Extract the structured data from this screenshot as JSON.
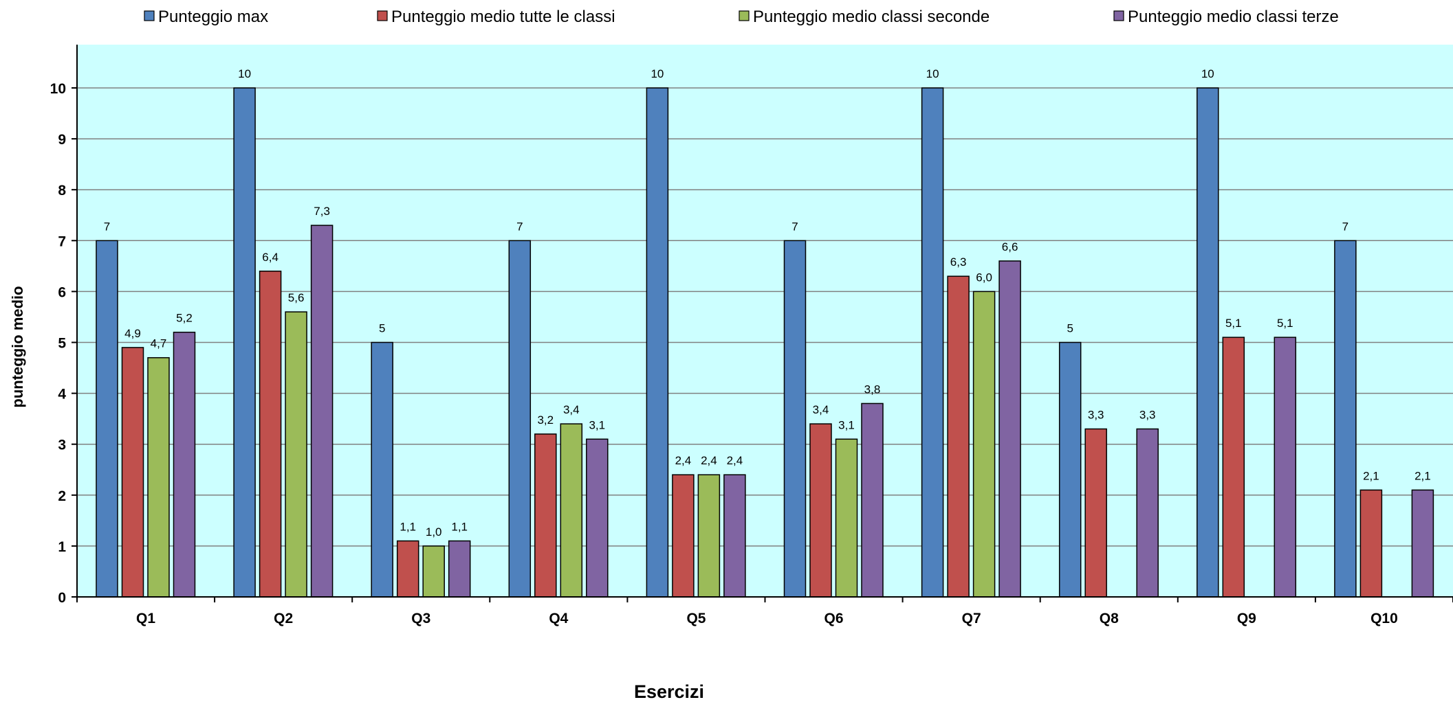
{
  "chart_data": {
    "type": "bar",
    "xlabel": "Esercizi",
    "ylabel": "punteggio medio",
    "ylim": [
      0,
      11
    ],
    "yticks": [
      0,
      1,
      2,
      3,
      4,
      5,
      6,
      7,
      8,
      9,
      10
    ],
    "grid": true,
    "legend_position": "top",
    "background_color": "#ccffff",
    "categories": [
      "Q1",
      "Q2",
      "Q3",
      "Q4",
      "Q5",
      "Q6",
      "Q7",
      "Q8",
      "Q9",
      "Q10"
    ],
    "series": [
      {
        "name": "Punteggio max",
        "color": "#4f81bd",
        "values": [
          7,
          10,
          5,
          7,
          10,
          7,
          10,
          5,
          10,
          7
        ],
        "labels": [
          "7",
          "10",
          "5",
          "7",
          "10",
          "7",
          "10",
          "5",
          "10",
          "7"
        ]
      },
      {
        "name": "Punteggio medio tutte le classi",
        "color": "#c0504d",
        "values": [
          4.9,
          6.4,
          1.1,
          3.2,
          2.4,
          3.4,
          6.3,
          3.3,
          5.1,
          2.1
        ],
        "labels": [
          "4,9",
          "6,4",
          "1,1",
          "3,2",
          "2,4",
          "3,4",
          "6,3",
          "3,3",
          "5,1",
          "2,1"
        ]
      },
      {
        "name": "Punteggio medio classi seconde",
        "color": "#9bbb59",
        "values": [
          4.7,
          5.6,
          1.0,
          3.4,
          2.4,
          3.1,
          6.0,
          null,
          null,
          null
        ],
        "labels": [
          "4,7",
          "5,6",
          "1,0",
          "3,4",
          "2,4",
          "3,1",
          "6,0",
          null,
          null,
          null
        ]
      },
      {
        "name": "Punteggio medio classi terze",
        "color": "#8064a2",
        "values": [
          5.2,
          7.3,
          1.1,
          3.1,
          2.4,
          3.8,
          6.6,
          3.3,
          5.1,
          2.1
        ],
        "labels": [
          "5,2",
          "7,3",
          "1,1",
          "3,1",
          "2,4",
          "3,8",
          "6,6",
          "3,3",
          "5,1",
          "2,1"
        ]
      }
    ]
  }
}
